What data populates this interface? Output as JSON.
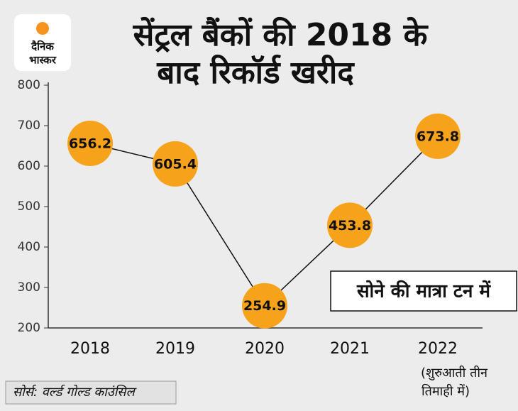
{
  "logo": [
    "दैनिक",
    "भास्कर"
  ],
  "chart_data": {
    "type": "line",
    "title": [
      "सेंट्रल बैंकों की 2018 के",
      "बाद रिकॉर्ड खरीद"
    ],
    "categories": [
      "2018",
      "2019",
      "2020",
      "2021",
      "2022"
    ],
    "values": [
      656.2,
      605.4,
      254.9,
      453.8,
      673.8
    ],
    "color": "#f7a21b",
    "line_color": "#111111",
    "ylim": [
      200,
      800
    ],
    "yticks": [
      200,
      300,
      400,
      500,
      600,
      700,
      800
    ],
    "grid": false,
    "unit_label": "सोने की मात्रा टन में",
    "annotation": [
      "(शुरुआती तीन",
      "तिमाही में)"
    ],
    "source": "सोर्स: वर्ल्ड गोल्ड काउंसिल"
  }
}
